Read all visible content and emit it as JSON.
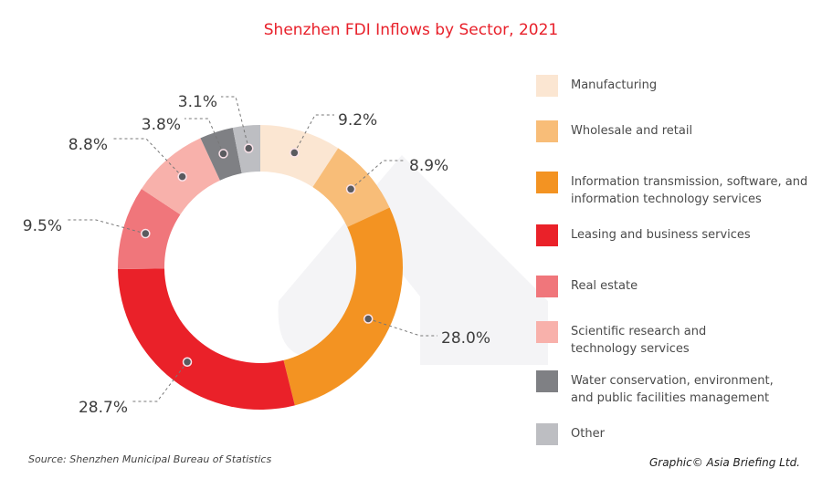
{
  "chart_data": {
    "type": "pie",
    "donut": true,
    "title": "Shenzhen FDI Inflows by Sector, 2021",
    "unit": "%",
    "legend_position": "right",
    "slices": [
      {
        "label": "Manufacturing",
        "value": 9.2,
        "display": "9.2%",
        "color": "#fbe6d2"
      },
      {
        "label": "Wholesale and retail",
        "value": 8.9,
        "display": "8.9%",
        "color": "#f8bd78"
      },
      {
        "label": "Information transmission, software, and information technology services",
        "value": 28.0,
        "display": "28.0%",
        "color": "#f39322"
      },
      {
        "label": "Leasing and business services",
        "value": 28.7,
        "display": "28.7%",
        "color": "#ea2129"
      },
      {
        "label": "Real estate",
        "value": 9.5,
        "display": "9.5%",
        "color": "#f0767b"
      },
      {
        "label": "Scientific research and technology services",
        "value": 8.8,
        "display": "8.8%",
        "color": "#f8b1ab"
      },
      {
        "label": "Water conservation, environment, and public facilities management",
        "value": 3.8,
        "display": "3.8%",
        "color": "#7f8084"
      },
      {
        "label": "Other",
        "value": 3.1,
        "display": "3.1%",
        "color": "#bdbec2"
      }
    ]
  },
  "legend_lines": [
    [
      "Manufacturing"
    ],
    [
      "Wholesale and retail"
    ],
    [
      "Information transmission, software, and",
      "information technology services"
    ],
    [
      "Leasing and business services"
    ],
    [
      "Real estate"
    ],
    [
      "Scientific research and",
      "technology services"
    ],
    [
      "Water conservation, environment,",
      "and public facilities management"
    ],
    [
      "Other"
    ]
  ],
  "source": "Source: Shenzhen Municipal Bureau of Statistics",
  "credit": "Graphic© Asia Briefing Ltd."
}
